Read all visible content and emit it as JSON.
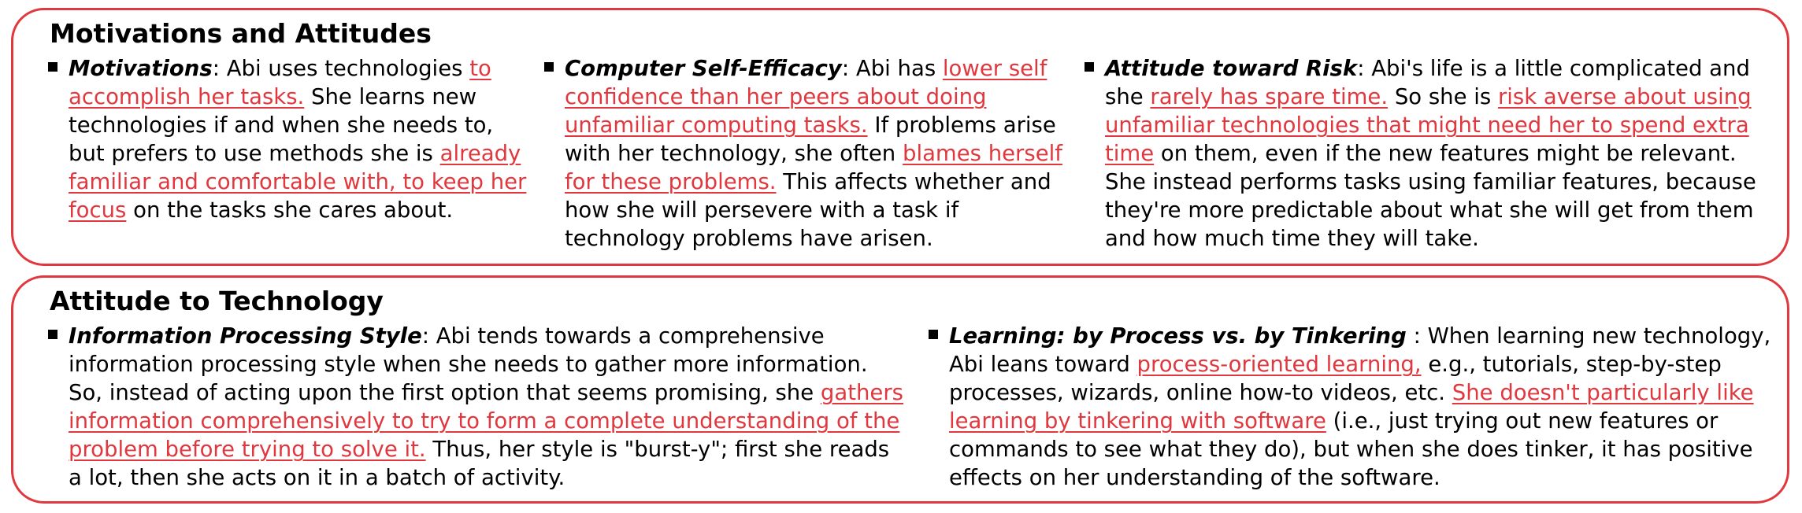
{
  "sections": [
    {
      "title": "Motivations and Attitudes",
      "items": [
        {
          "segments": [
            {
              "text": "Motivations",
              "style": "lead"
            },
            {
              "text": ": Abi uses technologies ",
              "style": "normal"
            },
            {
              "text": "to accomplish her tasks.",
              "style": "highlight"
            },
            {
              "text": " She learns new technologies if and when she needs to, but prefers to use methods she is ",
              "style": "normal"
            },
            {
              "text": "already familiar and comfortable with, to keep her focus",
              "style": "highlight"
            },
            {
              "text": " on the tasks she cares about.",
              "style": "normal"
            }
          ]
        },
        {
          "segments": [
            {
              "text": "Computer Self-Efficacy",
              "style": "lead"
            },
            {
              "text": ": Abi has ",
              "style": "normal"
            },
            {
              "text": "lower self confidence than her peers about doing unfamiliar computing tasks.",
              "style": "highlight"
            },
            {
              "text": " If problems arise with her technology, she often ",
              "style": "normal"
            },
            {
              "text": "blames herself for these problems.",
              "style": "highlight"
            },
            {
              "text": " This affects whether and how she will persevere with a task if technology problems have arisen.",
              "style": "normal"
            }
          ]
        },
        {
          "segments": [
            {
              "text": "Attitude toward Risk",
              "style": "lead"
            },
            {
              "text": ": Abi's life is a little complicated and she ",
              "style": "normal"
            },
            {
              "text": "rarely has spare time.",
              "style": "highlight"
            },
            {
              "text": " So she is ",
              "style": "normal"
            },
            {
              "text": "risk averse about using unfamiliar technologies that might need her to spend extra time",
              "style": "highlight"
            },
            {
              "text": " on them, even if the new features might be relevant. She instead performs tasks using familiar features, because they're more predictable about what she will get from them and how much time they will take.",
              "style": "normal"
            }
          ]
        }
      ]
    },
    {
      "title": "Attitude to Technology",
      "items": [
        {
          "segments": [
            {
              "text": "Information Processing Style",
              "style": "lead"
            },
            {
              "text": ": Abi tends towards a comprehensive information processing style when she needs to gather more information. So, instead of acting upon the first option that seems promising, she ",
              "style": "normal"
            },
            {
              "text": "gathers information comprehensively to try to form a complete understanding of the problem before trying to solve it.",
              "style": "highlight"
            },
            {
              "text": " Thus, her style is \"burst-y\"; first she reads a lot, then she acts on it in a batch of activity.",
              "style": "normal"
            }
          ]
        },
        {
          "segments": [
            {
              "text": "Learning: by Process vs. by Tinkering",
              "style": "lead"
            },
            {
              "text": " : When learning new technology, Abi leans toward ",
              "style": "normal"
            },
            {
              "text": "process-oriented learning,",
              "style": "highlight"
            },
            {
              "text": " e.g., tutorials, step-by-step processes, wizards, online how-to videos, etc. ",
              "style": "normal"
            },
            {
              "text": "She doesn't particularly like learning by tinkering with software",
              "style": "highlight"
            },
            {
              "text": " (i.e., just trying out new features or commands to see what they do), but when she does tinker, it has positive effects on her understanding of the software.",
              "style": "normal"
            }
          ]
        }
      ]
    }
  ],
  "colors": {
    "accent": "#e0383e",
    "text": "#000000",
    "background": "#ffffff"
  }
}
